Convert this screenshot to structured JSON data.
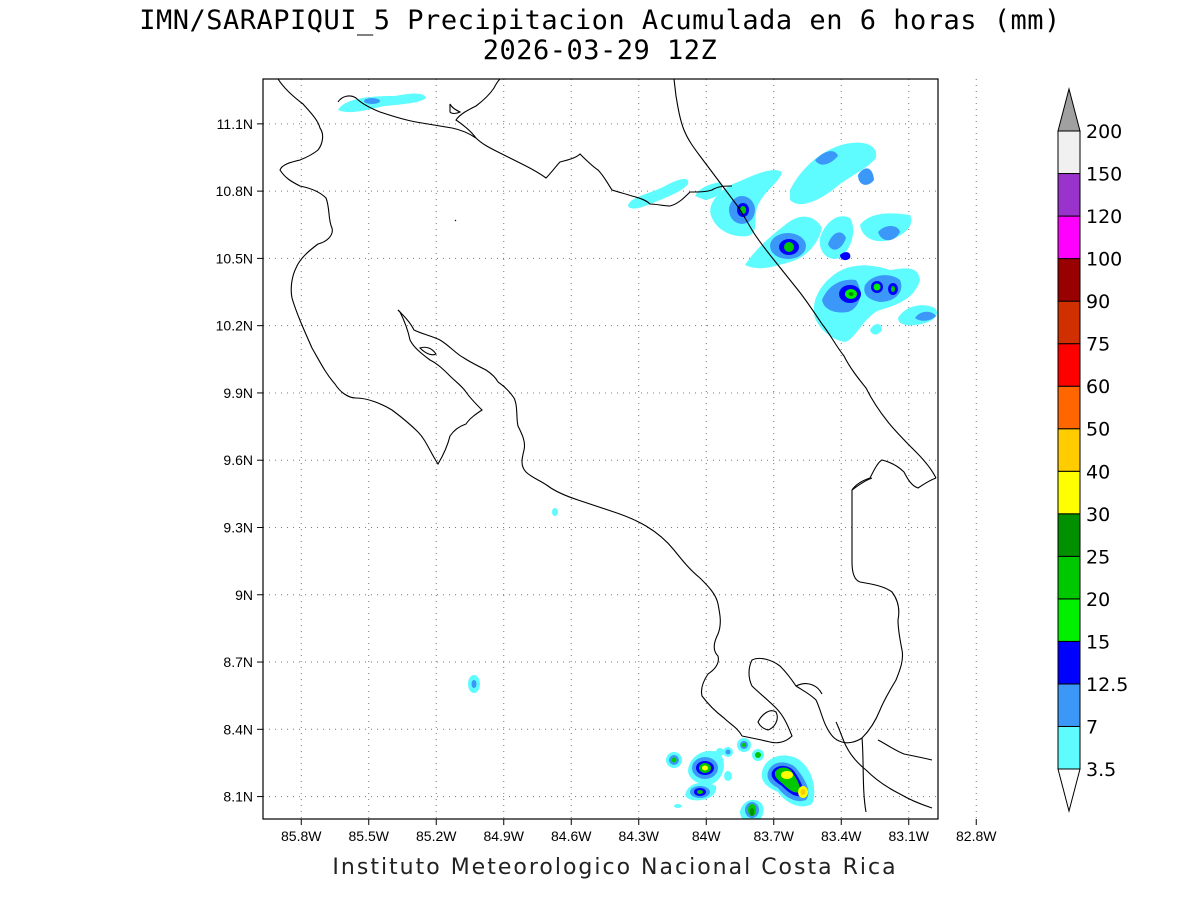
{
  "title": {
    "line1": "IMN/SARAPIQUI_5 Precipitacion Acumulada en 6 horas (mm)",
    "line2": "2026-03-29 12Z"
  },
  "footer": "Instituto Meteorologico Nacional Costa Rica",
  "map": {
    "lon_range": [
      -85.97,
      -82.97
    ],
    "lat_range": [
      8.0,
      11.3
    ],
    "lat_ticks": [
      11.1,
      10.8,
      10.5,
      10.2,
      9.9,
      9.6,
      9.3,
      9.0,
      8.7,
      8.4,
      8.1
    ],
    "lat_labels": [
      "11.1N",
      "10.8N",
      "10.5N",
      "10.2N",
      "9.9N",
      "9.6N",
      "9.3N",
      "9N",
      "8.7N",
      "8.4N",
      "8.1N"
    ],
    "lon_ticks": [
      -85.8,
      -85.5,
      -85.2,
      -84.9,
      -84.6,
      -84.3,
      -84.0,
      -83.7,
      -83.4,
      -83.1,
      -82.8
    ],
    "lon_labels": [
      "85.8W",
      "85.5W",
      "85.2W",
      "84.9W",
      "84.6W",
      "84.3W",
      "84W",
      "83.7W",
      "83.4W",
      "83.1W",
      "82.8W"
    ],
    "grid": "dotted"
  },
  "colorbar": {
    "levels": [
      "3.5",
      "7",
      "12.5",
      "15",
      "20",
      "25",
      "30",
      "40",
      "50",
      "60",
      "75",
      "90",
      "100",
      "120",
      "150",
      "200"
    ],
    "colors": [
      "#5ffcff",
      "#3c98f8",
      "#0000ff",
      "#00f000",
      "#00c800",
      "#009000",
      "#ffff00",
      "#ffcc00",
      "#ff6600",
      "#ff0000",
      "#d03000",
      "#990000",
      "#ff00ff",
      "#9933cc",
      "#f0f0f0"
    ],
    "over_color": "#a0a0a0",
    "under_color": "#ffffff"
  }
}
